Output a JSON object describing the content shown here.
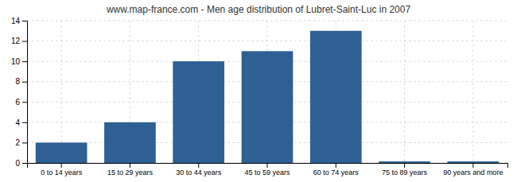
{
  "chart_data": {
    "type": "bar",
    "title": "www.map-france.com - Men age distribution of Lubret-Saint-Luc in 2007",
    "categories": [
      "0 to 14 years",
      "15 to 29 years",
      "30 to 44 years",
      "45 to 59 years",
      "60 to 74 years",
      "75 to 89 years",
      "90 years and more"
    ],
    "values": [
      2,
      4,
      10,
      11,
      13,
      0.15,
      0.15
    ],
    "color": "#2e6094",
    "ylim": [
      0,
      14
    ],
    "yticks": [
      0,
      2,
      4,
      6,
      8,
      10,
      12,
      14
    ],
    "grid": true
  }
}
